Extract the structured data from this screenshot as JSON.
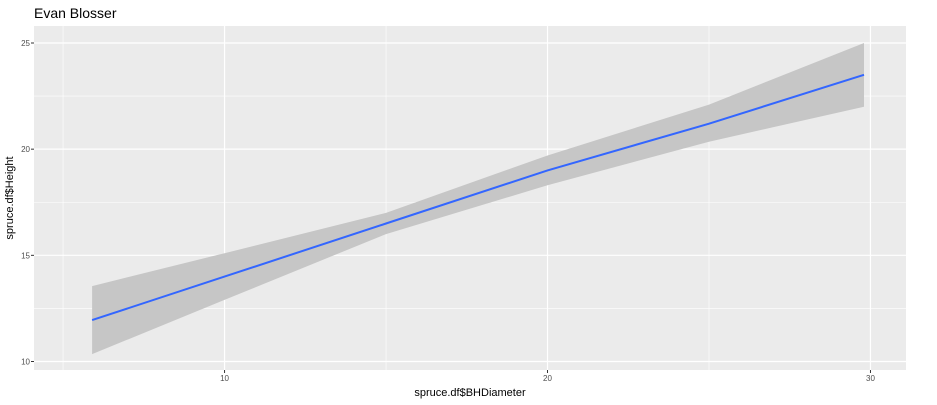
{
  "chart_data": {
    "type": "line",
    "title": "Evan Blosser",
    "xlabel": "spruce.df$BHDiameter",
    "ylabel": "spruce.df$Height",
    "xlim": [
      4.1,
      31.1
    ],
    "ylim": [
      9.6,
      25.8
    ],
    "x_ticks": [
      10,
      20,
      30
    ],
    "y_ticks": [
      10,
      15,
      20,
      25
    ],
    "grid": true,
    "colors": {
      "panel_bg": "#ebebeb",
      "grid": "#ffffff",
      "line": "#3366ff",
      "ribbon": "#c6c6c6"
    },
    "series": [
      {
        "x": [
          5.9,
          10,
          15,
          20,
          25,
          29.8
        ],
        "y": [
          11.95,
          14.0,
          16.5,
          19.0,
          21.2,
          23.5
        ],
        "lower": [
          10.35,
          12.9,
          16.0,
          18.3,
          20.35,
          22.0
        ],
        "upper": [
          13.55,
          15.1,
          17.0,
          19.7,
          22.1,
          25.0
        ]
      }
    ]
  }
}
